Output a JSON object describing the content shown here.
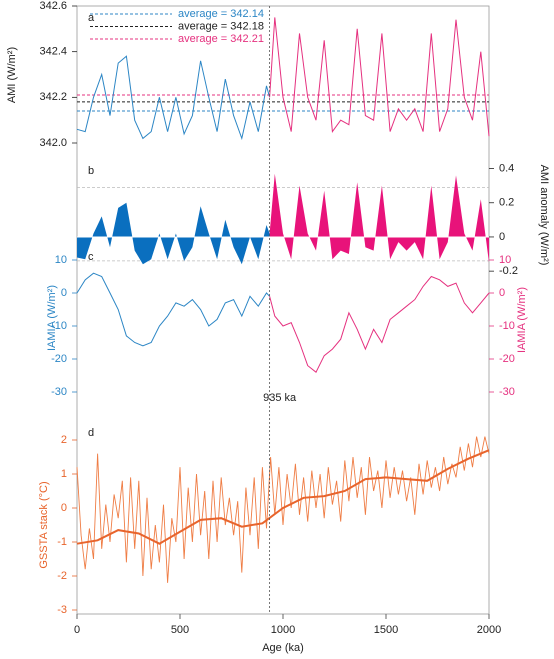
{
  "chart_data": [
    {
      "type": "line",
      "panel_label": "a",
      "ylabel": "AMI (W/m²)",
      "ycolor": "#222",
      "ylim": [
        342.0,
        342.6
      ],
      "yticks": [
        {
          "value": 342,
          "label": "342.0"
        },
        342.2,
        342.4,
        342.6
      ],
      "series": [
        {
          "color": "#2c86c5",
          "x": [
            0,
            40,
            80,
            120,
            160,
            200,
            240,
            280,
            320,
            360,
            400,
            440,
            480,
            520,
            560,
            600,
            640,
            680,
            720,
            760,
            800,
            840,
            880,
            920,
            935
          ],
          "values": [
            342.06,
            342.05,
            342.2,
            342.3,
            342.12,
            342.35,
            342.38,
            342.1,
            342.02,
            342.05,
            342.2,
            342.05,
            342.2,
            342.04,
            342.12,
            342.36,
            342.2,
            342.05,
            342.28,
            342.12,
            342.02,
            342.18,
            342.05,
            342.25,
            342.2
          ]
        },
        {
          "color": "#e5317f",
          "x": [
            935,
            960,
            1000,
            1040,
            1080,
            1120,
            1160,
            1200,
            1240,
            1280,
            1320,
            1360,
            1400,
            1440,
            1480,
            1520,
            1560,
            1600,
            1640,
            1680,
            1720,
            1760,
            1800,
            1840,
            1880,
            1920,
            1960,
            2000
          ],
          "values": [
            342.2,
            342.55,
            342.2,
            342.05,
            342.48,
            342.2,
            342.1,
            342.45,
            342.05,
            342.1,
            342.08,
            342.5,
            342.12,
            342.1,
            342.48,
            342.05,
            342.15,
            342.1,
            342.15,
            342.05,
            342.48,
            342.05,
            342.15,
            342.54,
            342.2,
            342.1,
            342.4,
            342.03
          ]
        }
      ],
      "averages": [
        {
          "name": "average = 342.14",
          "color": "#2c86c5",
          "value": 342.14
        },
        {
          "name": "average = 342.18",
          "color": "#222",
          "value": 342.18
        },
        {
          "name": "average = 342.21",
          "color": "#e5317f",
          "value": 342.21
        }
      ]
    },
    {
      "type": "area",
      "panel_label": "b",
      "ylabel": "AMI anomaly (W/m²)",
      "ycolor": "#222",
      "yside": "right",
      "ylim": [
        -0.25,
        0.45
      ],
      "yticks": [
        0.4,
        0.2,
        0,
        -0.2
      ],
      "hlines": [
        0.29,
        -0.14
      ],
      "series": [
        {
          "color": "#0a6fbf",
          "x": [
            0,
            40,
            80,
            120,
            160,
            200,
            240,
            280,
            320,
            360,
            400,
            440,
            480,
            520,
            560,
            600,
            640,
            680,
            720,
            760,
            800,
            840,
            880,
            920,
            935
          ],
          "values": [
            -0.12,
            -0.13,
            0.02,
            0.12,
            -0.06,
            0.17,
            0.2,
            -0.08,
            -0.16,
            -0.13,
            0.02,
            -0.13,
            0.02,
            -0.14,
            -0.06,
            0.18,
            0.02,
            -0.13,
            0.1,
            -0.06,
            -0.16,
            0,
            -0.13,
            0.07,
            0.02
          ]
        },
        {
          "color": "#e8137a",
          "x": [
            935,
            960,
            1000,
            1040,
            1080,
            1120,
            1160,
            1200,
            1240,
            1280,
            1320,
            1360,
            1400,
            1440,
            1480,
            1520,
            1560,
            1600,
            1640,
            1680,
            1720,
            1760,
            1800,
            1840,
            1880,
            1920,
            1960,
            2000
          ],
          "values": [
            0.02,
            0.37,
            0.02,
            -0.13,
            0.3,
            0.02,
            -0.08,
            0.27,
            -0.13,
            -0.08,
            -0.1,
            0.32,
            -0.06,
            -0.08,
            0.3,
            -0.13,
            -0.03,
            -0.08,
            -0.03,
            -0.13,
            0.3,
            -0.13,
            -0.03,
            0.36,
            0.02,
            -0.08,
            0.22,
            -0.15
          ]
        }
      ]
    },
    {
      "type": "line",
      "panel_label": "c",
      "ylabel": "IAMIA (W/m²)",
      "y2label": "IAMIA (W/m²)",
      "ycolor": "#2c86c5",
      "y2color": "#e5317f",
      "ylim": [
        -32,
        14
      ],
      "yticks": [
        10,
        0,
        -10,
        -20,
        -30
      ],
      "y2lim": [
        -32,
        14
      ],
      "y2ticks": [
        10,
        0,
        -10,
        -20,
        -30
      ],
      "series": [
        {
          "color": "#2c86c5",
          "x": [
            0,
            40,
            80,
            120,
            160,
            200,
            240,
            280,
            320,
            360,
            400,
            440,
            480,
            520,
            560,
            600,
            640,
            680,
            720,
            760,
            800,
            840,
            880,
            920,
            935
          ],
          "values": [
            0,
            4,
            6,
            5,
            0,
            -5,
            -13,
            -15,
            -16,
            -15,
            -10,
            -7,
            -3,
            -4,
            -2,
            -5,
            -10,
            -8,
            -3,
            -2,
            -7,
            -1,
            -4,
            0,
            -1
          ]
        },
        {
          "color": "#e5317f",
          "axis": "y2",
          "x": [
            935,
            960,
            1000,
            1040,
            1080,
            1120,
            1160,
            1200,
            1240,
            1280,
            1320,
            1360,
            1400,
            1440,
            1480,
            1520,
            1560,
            1600,
            1640,
            1680,
            1720,
            1760,
            1800,
            1840,
            1880,
            1920,
            1960,
            2000
          ],
          "values": [
            -1,
            -7,
            -10,
            -9,
            -15,
            -22,
            -24,
            -19,
            -17,
            -14,
            -6,
            -11,
            -17,
            -11,
            -15,
            -8,
            -6,
            -4,
            -2,
            2,
            5,
            4,
            2,
            3,
            -3,
            -6,
            -3,
            0
          ]
        }
      ]
    },
    {
      "type": "line",
      "panel_label": "d",
      "ylabel": "GSSTA stack (°C)",
      "ycolor": "#e8642c",
      "ylim": [
        -3.05,
        2.3
      ],
      "yticks": [
        2,
        1,
        0,
        -1,
        -2,
        -3
      ],
      "xlim": [
        0,
        2000
      ],
      "xticks": [
        0,
        500,
        1000,
        1500,
        2000
      ],
      "xlabel": "Age (ka)",
      "vline": {
        "x": 935,
        "label": "935 ka"
      },
      "series": [
        {
          "color": "#ef7d45",
          "width": 0.9,
          "x": [
            0,
            20,
            40,
            60,
            80,
            100,
            120,
            140,
            160,
            180,
            200,
            220,
            240,
            260,
            280,
            300,
            320,
            340,
            360,
            380,
            400,
            420,
            440,
            460,
            480,
            500,
            520,
            540,
            560,
            580,
            600,
            620,
            640,
            660,
            680,
            700,
            720,
            740,
            760,
            780,
            800,
            820,
            840,
            860,
            880,
            900,
            920,
            940,
            960,
            980,
            1000,
            1020,
            1040,
            1060,
            1080,
            1100,
            1120,
            1140,
            1160,
            1180,
            1200,
            1220,
            1240,
            1260,
            1280,
            1300,
            1320,
            1340,
            1360,
            1380,
            1400,
            1420,
            1440,
            1460,
            1480,
            1500,
            1520,
            1540,
            1560,
            1580,
            1600,
            1620,
            1640,
            1660,
            1680,
            1700,
            1720,
            1740,
            1760,
            1780,
            1800,
            1820,
            1840,
            1860,
            1880,
            1900,
            1920,
            1940,
            1960,
            1980,
            2000
          ],
          "values": [
            1.2,
            -0.8,
            -1.8,
            -0.6,
            -1.5,
            1.6,
            -1.2,
            0.1,
            -1.0,
            0.4,
            -0.3,
            0.8,
            -1.6,
            0.9,
            -1.2,
            0.8,
            -2.0,
            0.3,
            -1.8,
            -0.5,
            -1.6,
            0.1,
            -2.2,
            -0.3,
            -1.0,
            1.2,
            -1.5,
            0.6,
            -1.0,
            1.0,
            -0.8,
            0.5,
            -1.5,
            0.8,
            -1.0,
            0.9,
            -0.5,
            0.3,
            -0.8,
            0.2,
            -1.9,
            0.6,
            -0.8,
            0.9,
            -1.2,
            1.2,
            -0.6,
            1.5,
            -0.2,
            1.2,
            -0.5,
            1.0,
            0.0,
            1.3,
            -0.2,
            0.9,
            -0.4,
            1.1,
            0.0,
            1.0,
            -0.3,
            1.2,
            0.1,
            0.8,
            -0.4,
            1.4,
            0.2,
            1.5,
            0.3,
            1.2,
            -0.2,
            1.5,
            0.5,
            1.1,
            0.0,
            1.4,
            0.3,
            1.2,
            0.4,
            1.1,
            0.2,
            0.9,
            -0.2,
            1.3,
            0.4,
            1.4,
            0.6,
            1.2,
            0.5,
            1.5,
            0.7,
            1.3,
            0.9,
            1.8,
            1.1,
            1.9,
            1.2,
            2.1,
            1.5,
            2.1,
            1.6
          ]
        },
        {
          "color": "#e8642c",
          "width": 2,
          "x": [
            0,
            100,
            200,
            300,
            400,
            500,
            600,
            700,
            800,
            900,
            1000,
            1100,
            1200,
            1300,
            1400,
            1500,
            1600,
            1700,
            1800,
            1900,
            2000
          ],
          "values": [
            -1.05,
            -0.95,
            -0.65,
            -0.75,
            -1.05,
            -0.7,
            -0.35,
            -0.3,
            -0.55,
            -0.45,
            0,
            0.3,
            0.35,
            0.5,
            0.85,
            0.9,
            0.85,
            0.8,
            1.15,
            1.45,
            1.7
          ]
        }
      ]
    }
  ]
}
